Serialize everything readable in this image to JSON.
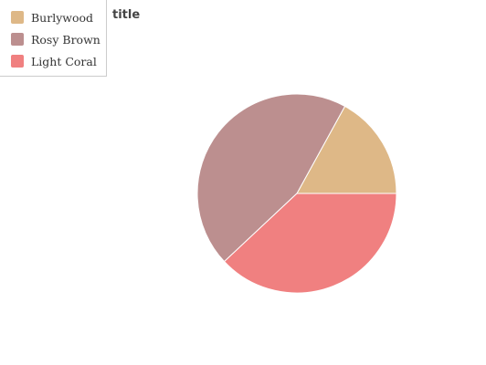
{
  "chart_data": {
    "type": "pie",
    "title": "title",
    "legend_position": "top-left",
    "categories": [
      "Burlywood",
      "Rosy Brown",
      "Light Coral"
    ],
    "values": [
      17,
      45,
      38
    ],
    "colors": [
      "#deb887",
      "#bc8f8f",
      "#f08080"
    ]
  }
}
